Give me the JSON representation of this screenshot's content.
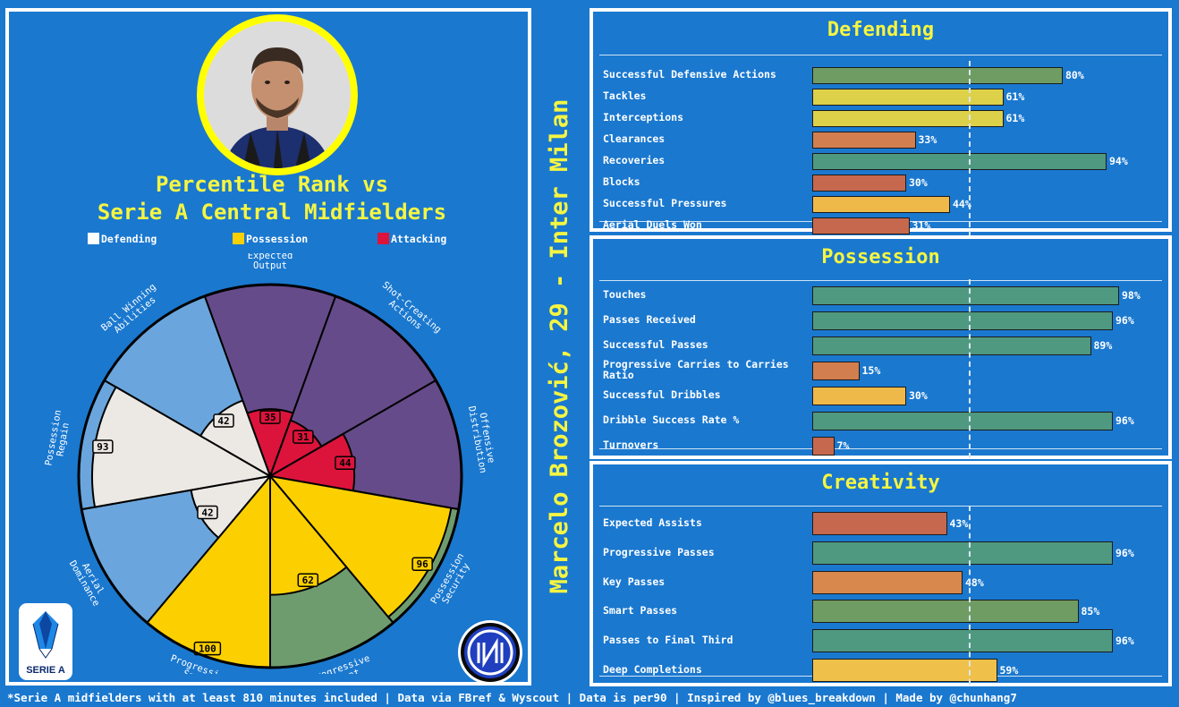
{
  "chart_title_line1": "Percentile Rank vs",
  "chart_title_line2": "Serie A Central Midfielders",
  "vertical_title": "Marcelo Brozović, 29 - Inter Milan",
  "footer": "*Serie A midfielders with at least 810 minutes included | Data via FBref & Wyscout | Data is per90 | Inspired by @blues_breakdown | Made by @chunhang7",
  "serie_a_logo_text": "SERIE A",
  "colors": {
    "defending": "#ece9e4",
    "possession": "#fcd000",
    "attacking": "#dc143c",
    "bg": "#1a78cf",
    "title": "#f5f542"
  },
  "chart_data": [
    {
      "type": "polar_bar",
      "legend": [
        {
          "label": "Defending",
          "color": "#ffffff"
        },
        {
          "label": "Possession",
          "color": "#fcd000"
        },
        {
          "label": "Attacking",
          "color": "#dc143c"
        }
      ],
      "categories": [
        "Expected Output",
        "Shot-Creating Actions",
        "Offensive Distribution",
        "Possession Security",
        "Progressive Intent",
        "Progression Speed",
        "Aerial Dominance",
        "Possession Regain",
        "Ball Winning Abilities"
      ],
      "values": [
        35,
        31,
        44,
        96,
        62,
        100,
        42,
        93,
        42
      ],
      "groups": [
        "attacking",
        "attacking",
        "attacking",
        "possession",
        "possession",
        "possession",
        "defending",
        "defending",
        "defending"
      ],
      "background_colors": [
        "#664b8a",
        "#664b8a",
        "#664b8a",
        "#6f9c6f",
        "#6f9c6f",
        "#6f9c6f",
        "#6aa6dd",
        "#6aa6dd",
        "#6aa6dd"
      ],
      "rlim": [
        0,
        100
      ]
    },
    {
      "type": "bar",
      "title": "Defending",
      "categories": [
        "Successful Defensive Actions",
        "Tackles",
        "Interceptions",
        "Clearances",
        "Recoveries",
        "Blocks",
        "Successful Pressures",
        "Aerial Duels Won"
      ],
      "values": [
        80,
        61,
        61,
        33,
        94,
        30,
        44,
        31
      ],
      "labels": [
        "80%",
        "61%",
        "61%",
        "33%",
        "94%",
        "30%",
        "44%",
        "31%"
      ],
      "colors": [
        "#6f9c63",
        "#ddd14a",
        "#ddd14a",
        "#d27e4f",
        "#4f9980",
        "#c6684d",
        "#efb94a",
        "#c6684d"
      ],
      "median": 50,
      "xlim": [
        0,
        100
      ]
    },
    {
      "type": "bar",
      "title": "Possession",
      "categories": [
        "Touches",
        "Passes Received",
        "Successful Passes",
        "Progressive Carries to Carries\nRatio",
        "Successful Dribbles",
        "Dribble Success Rate %",
        "Turnovers"
      ],
      "values": [
        98,
        96,
        89,
        15,
        30,
        96,
        7
      ],
      "labels": [
        "98%",
        "96%",
        "89%",
        "15%",
        "30%",
        "96%",
        "7%"
      ],
      "colors": [
        "#4f9980",
        "#4f9980",
        "#4f9980",
        "#d27e4f",
        "#efb94a",
        "#4f9980",
        "#c6684d"
      ],
      "median": 50,
      "xlim": [
        0,
        100
      ]
    },
    {
      "type": "bar",
      "title": "Creativity",
      "categories": [
        "Expected Assists",
        "Progressive Passes",
        "Key Passes",
        "Smart Passes",
        "Passes to Final Third",
        "Deep Completions"
      ],
      "values": [
        43,
        96,
        48,
        85,
        96,
        59
      ],
      "labels": [
        "43%",
        "96%",
        "48%",
        "85%",
        "96%",
        "59%"
      ],
      "colors": [
        "#c6684d",
        "#4f9980",
        "#d8884d",
        "#6f9c63",
        "#4f9980",
        "#efc14a"
      ],
      "median": 50,
      "xlim": [
        0,
        100
      ]
    }
  ]
}
